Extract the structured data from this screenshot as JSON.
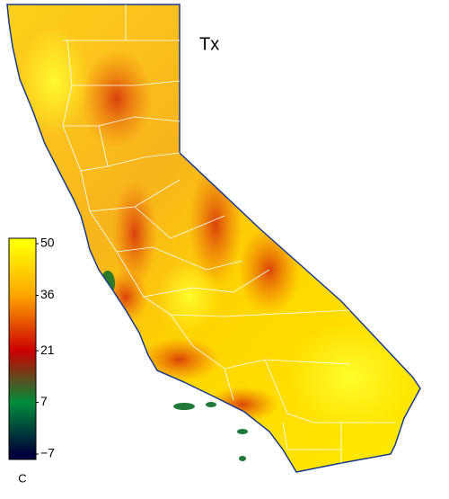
{
  "map": {
    "title": "Tx",
    "colorbar": {
      "ticks": [
        50,
        36,
        21,
        7,
        {
          "value": -7,
          "label": "−7"
        }
      ],
      "colors": [
        "#ffff00",
        "#ffa500",
        "#cc0000",
        "#008c3a",
        "#00003a"
      ],
      "unit": "C"
    }
  }
}
